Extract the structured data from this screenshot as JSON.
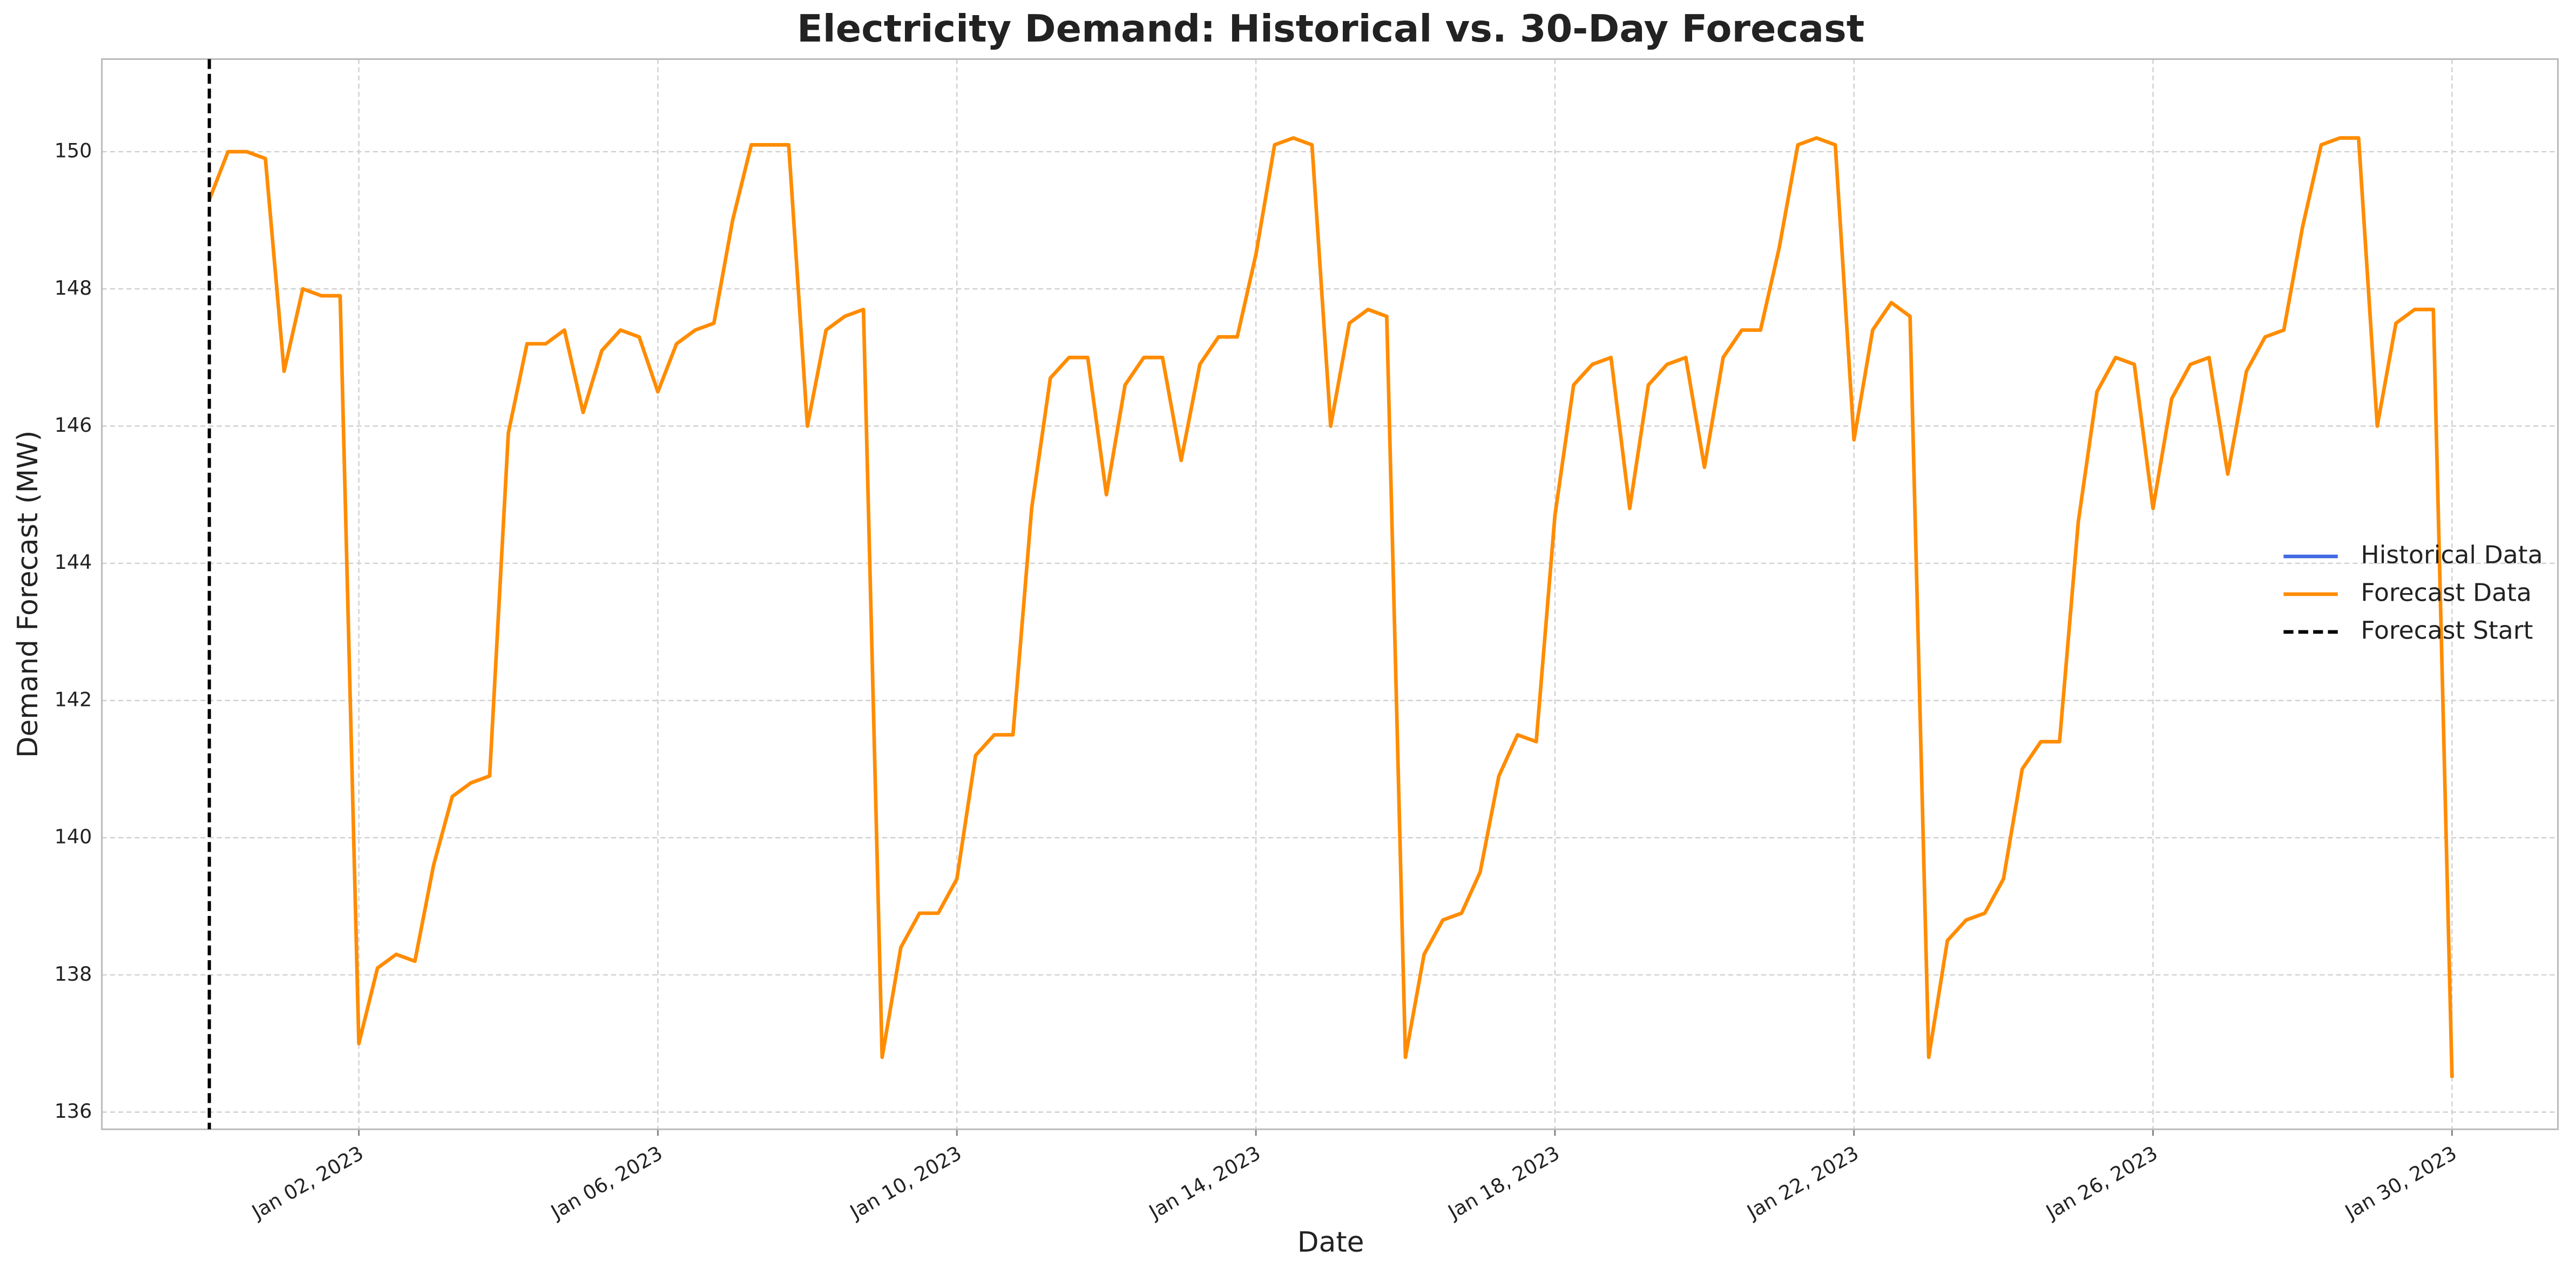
{
  "chart_data": {
    "type": "line",
    "title": "Electricity Demand: Historical vs. 30-Day Forecast",
    "xlabel": "Date",
    "ylabel": "Demand Forecast (MW)",
    "x": [
      "2022-12-31T00:00",
      "2022-12-31T06:00",
      "2022-12-31T12:00",
      "2022-12-31T18:00",
      "2023-01-01T00:00",
      "2023-01-01T06:00",
      "2023-01-01T12:00",
      "2023-01-01T18:00",
      "2023-01-02T00:00",
      "2023-01-02T06:00",
      "2023-01-02T12:00",
      "2023-01-02T18:00",
      "2023-01-03T00:00",
      "2023-01-03T06:00",
      "2023-01-03T12:00",
      "2023-01-03T18:00",
      "2023-01-04T00:00",
      "2023-01-04T06:00",
      "2023-01-04T12:00",
      "2023-01-04T18:00",
      "2023-01-05T00:00",
      "2023-01-05T06:00",
      "2023-01-05T12:00",
      "2023-01-05T18:00",
      "2023-01-06T00:00",
      "2023-01-06T06:00",
      "2023-01-06T12:00",
      "2023-01-06T18:00",
      "2023-01-07T00:00",
      "2023-01-07T06:00",
      "2023-01-07T12:00",
      "2023-01-07T18:00",
      "2023-01-08T00:00",
      "2023-01-08T06:00",
      "2023-01-08T12:00",
      "2023-01-08T18:00",
      "2023-01-09T00:00",
      "2023-01-09T06:00",
      "2023-01-09T12:00",
      "2023-01-09T18:00",
      "2023-01-10T00:00",
      "2023-01-10T06:00",
      "2023-01-10T12:00",
      "2023-01-10T18:00",
      "2023-01-11T00:00",
      "2023-01-11T06:00",
      "2023-01-11T12:00",
      "2023-01-11T18:00",
      "2023-01-12T00:00",
      "2023-01-12T06:00",
      "2023-01-12T12:00",
      "2023-01-12T18:00",
      "2023-01-13T00:00",
      "2023-01-13T06:00",
      "2023-01-13T12:00",
      "2023-01-13T18:00",
      "2023-01-14T00:00",
      "2023-01-14T06:00",
      "2023-01-14T12:00",
      "2023-01-14T18:00",
      "2023-01-15T00:00",
      "2023-01-15T06:00",
      "2023-01-15T12:00",
      "2023-01-15T18:00",
      "2023-01-16T00:00",
      "2023-01-16T06:00",
      "2023-01-16T12:00",
      "2023-01-16T18:00",
      "2023-01-17T00:00",
      "2023-01-17T06:00",
      "2023-01-17T12:00",
      "2023-01-17T18:00",
      "2023-01-18T00:00",
      "2023-01-18T06:00",
      "2023-01-18T12:00",
      "2023-01-18T18:00",
      "2023-01-19T00:00",
      "2023-01-19T06:00",
      "2023-01-19T12:00",
      "2023-01-19T18:00",
      "2023-01-20T00:00",
      "2023-01-20T06:00",
      "2023-01-20T12:00",
      "2023-01-20T18:00",
      "2023-01-21T00:00",
      "2023-01-21T06:00",
      "2023-01-21T12:00",
      "2023-01-21T18:00",
      "2023-01-22T00:00",
      "2023-01-22T06:00",
      "2023-01-22T12:00",
      "2023-01-22T18:00",
      "2023-01-23T00:00",
      "2023-01-23T06:00",
      "2023-01-23T12:00",
      "2023-01-23T18:00",
      "2023-01-24T00:00",
      "2023-01-24T06:00",
      "2023-01-24T12:00",
      "2023-01-24T18:00",
      "2023-01-25T00:00",
      "2023-01-25T06:00",
      "2023-01-25T12:00",
      "2023-01-25T18:00",
      "2023-01-26T00:00",
      "2023-01-26T06:00",
      "2023-01-26T12:00",
      "2023-01-26T18:00",
      "2023-01-27T00:00",
      "2023-01-27T06:00",
      "2023-01-27T12:00",
      "2023-01-27T18:00",
      "2023-01-28T00:00",
      "2023-01-28T06:00",
      "2023-01-28T12:00",
      "2023-01-28T18:00",
      "2023-01-29T00:00",
      "2023-01-29T06:00",
      "2023-01-29T12:00",
      "2023-01-29T18:00",
      "2023-01-30T00:00"
    ],
    "series": [
      {
        "name": "Historical Data",
        "color": "#4169e1",
        "values": [
          null,
          null,
          null,
          null,
          null,
          null,
          null,
          null,
          null,
          null,
          null,
          null,
          null,
          null,
          null,
          null,
          null,
          null,
          null,
          null,
          null,
          null,
          null,
          null,
          null,
          null,
          null,
          null,
          null,
          null,
          null,
          null,
          null,
          null,
          null,
          null,
          null,
          null,
          null,
          null,
          null,
          null,
          null,
          null,
          null,
          null,
          null,
          null,
          null,
          null,
          null,
          null,
          null,
          null,
          null,
          null,
          null,
          null,
          null,
          null,
          null,
          null,
          null,
          null,
          null,
          null,
          null,
          null,
          null,
          null,
          null,
          null,
          null,
          null,
          null,
          null,
          null,
          null,
          null,
          null,
          null,
          null,
          null,
          null,
          null,
          null,
          null,
          null,
          null,
          null,
          null,
          null,
          null,
          null,
          null,
          null,
          null,
          null,
          null,
          null,
          null,
          null,
          null,
          null,
          null,
          null,
          null,
          null,
          null,
          null,
          null,
          null,
          null,
          null,
          null,
          null,
          null,
          null,
          null,
          null,
          null
        ]
      },
      {
        "name": "Forecast Data",
        "color": "#ff8c00",
        "values": [
          149.3,
          150.0,
          150.0,
          149.9,
          146.8,
          148.0,
          147.9,
          147.9,
          137.0,
          138.1,
          138.3,
          138.2,
          139.6,
          140.6,
          140.8,
          140.9,
          145.9,
          147.2,
          147.2,
          147.4,
          146.2,
          147.1,
          147.4,
          147.3,
          146.5,
          147.2,
          147.4,
          147.5,
          149.0,
          150.1,
          150.1,
          150.1,
          146.0,
          147.4,
          147.6,
          147.7,
          136.8,
          138.4,
          138.9,
          138.9,
          139.4,
          141.2,
          141.5,
          141.5,
          144.8,
          146.7,
          147.0,
          147.0,
          145.0,
          146.6,
          147.0,
          147.0,
          145.5,
          146.9,
          147.3,
          147.3,
          148.5,
          150.1,
          150.2,
          150.1,
          146.0,
          147.5,
          147.7,
          147.6,
          136.8,
          138.3,
          138.8,
          138.9,
          139.5,
          140.9,
          141.5,
          141.4,
          144.7,
          146.6,
          146.9,
          147.0,
          144.8,
          146.6,
          146.9,
          147.0,
          145.4,
          147.0,
          147.4,
          147.4,
          148.6,
          150.1,
          150.2,
          150.1,
          145.8,
          147.4,
          147.8,
          147.6,
          136.8,
          138.5,
          138.8,
          138.9,
          139.4,
          141.0,
          141.4,
          141.4,
          144.6,
          146.5,
          147.0,
          146.9,
          144.8,
          146.4,
          146.9,
          147.0,
          145.3,
          146.8,
          147.3,
          147.4,
          148.9,
          150.1,
          150.2,
          150.2,
          146.0,
          147.5,
          147.7,
          147.7,
          136.5
        ]
      }
    ],
    "forecast_start": {
      "name": "Forecast Start",
      "x": "2022-12-31T00:00",
      "color": "#000000",
      "style": "dashed"
    },
    "xlim": [
      "2022-12-29T13:30",
      "2023-01-31T10:00"
    ],
    "ylim": [
      135.75,
      151.35
    ],
    "xticks": [
      {
        "value": "2023-01-02T00:00",
        "label": "Jan 02, 2023"
      },
      {
        "value": "2023-01-06T00:00",
        "label": "Jan 06, 2023"
      },
      {
        "value": "2023-01-10T00:00",
        "label": "Jan 10, 2023"
      },
      {
        "value": "2023-01-14T00:00",
        "label": "Jan 14, 2023"
      },
      {
        "value": "2023-01-18T00:00",
        "label": "Jan 18, 2023"
      },
      {
        "value": "2023-01-22T00:00",
        "label": "Jan 22, 2023"
      },
      {
        "value": "2023-01-26T00:00",
        "label": "Jan 26, 2023"
      },
      {
        "value": "2023-01-30T00:00",
        "label": "Jan 30, 2023"
      }
    ],
    "yticks": [
      136,
      138,
      140,
      142,
      144,
      146,
      148,
      150
    ],
    "grid": true,
    "legend": "right"
  }
}
